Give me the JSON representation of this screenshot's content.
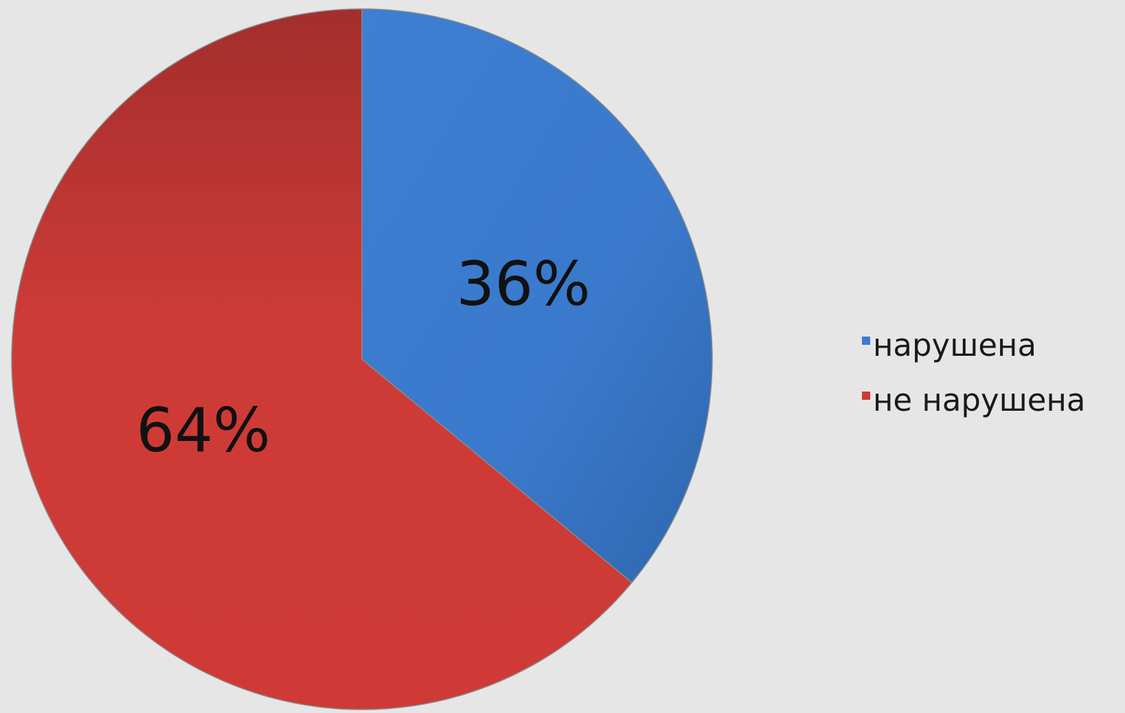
{
  "chart_data": {
    "type": "pie",
    "slices": [
      {
        "label": "нарушена",
        "value": 36,
        "display": "36%",
        "color": "#3b7bcf"
      },
      {
        "label": "не нарушена",
        "value": 64,
        "display": "64%",
        "color": "#cf3a36"
      }
    ],
    "start_angle_deg": 0,
    "direction": "clockwise",
    "legend_position": "right"
  }
}
